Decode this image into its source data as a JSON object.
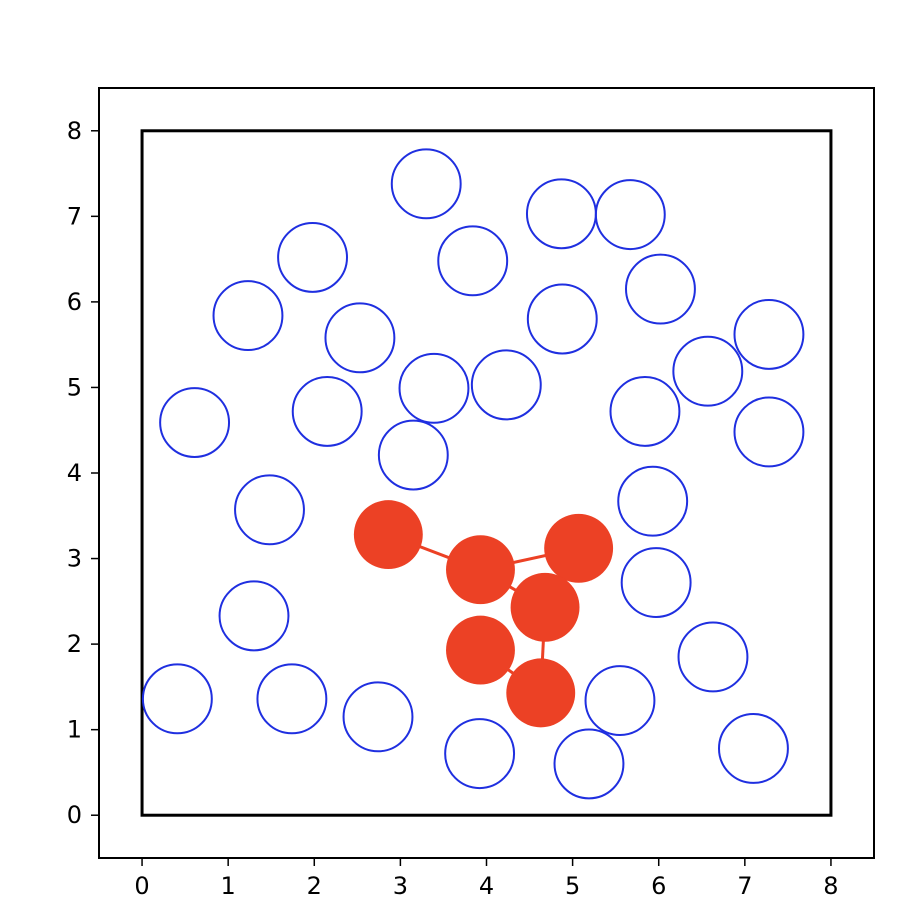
{
  "chart_data": {
    "type": "scatter",
    "title": "",
    "xlabel": "",
    "ylabel": "",
    "xlim": [
      -0.5,
      8.5
    ],
    "ylim": [
      -0.5,
      8.5
    ],
    "x_ticks": [
      "0",
      "1",
      "2",
      "3",
      "4",
      "5",
      "6",
      "7",
      "8"
    ],
    "y_ticks": [
      "0",
      "1",
      "2",
      "3",
      "4",
      "5",
      "6",
      "7",
      "8"
    ],
    "grid": false,
    "legend": "none",
    "boundary_box": {
      "x": [
        0,
        8
      ],
      "y": [
        0,
        8
      ],
      "color": "#000000"
    },
    "particle_radius": 0.4,
    "series": [
      {
        "style": "hollow",
        "color": "#1f2fe0",
        "points": [
          [
            3.3,
            7.38
          ],
          [
            4.87,
            7.03
          ],
          [
            5.67,
            7.02
          ],
          [
            1.98,
            6.52
          ],
          [
            3.84,
            6.48
          ],
          [
            6.02,
            6.15
          ],
          [
            1.23,
            5.84
          ],
          [
            4.88,
            5.8
          ],
          [
            2.53,
            5.58
          ],
          [
            7.28,
            5.62
          ],
          [
            6.57,
            5.19
          ],
          [
            3.39,
            4.99
          ],
          [
            4.23,
            5.03
          ],
          [
            0.61,
            4.59
          ],
          [
            2.15,
            4.72
          ],
          [
            5.84,
            4.72
          ],
          [
            7.28,
            4.48
          ],
          [
            3.15,
            4.21
          ],
          [
            5.93,
            3.67
          ],
          [
            1.48,
            3.57
          ],
          [
            5.97,
            2.72
          ],
          [
            1.3,
            2.33
          ],
          [
            6.63,
            1.85
          ],
          [
            0.41,
            1.36
          ],
          [
            1.74,
            1.36
          ],
          [
            2.74,
            1.15
          ],
          [
            5.55,
            1.34
          ],
          [
            3.92,
            0.72
          ],
          [
            5.19,
            0.6
          ],
          [
            7.1,
            0.78
          ]
        ]
      },
      {
        "style": "filled",
        "color": "#ec4125",
        "points": [
          [
            2.86,
            3.28
          ],
          [
            3.93,
            2.87
          ],
          [
            5.07,
            3.12
          ],
          [
            4.68,
            2.43
          ],
          [
            3.93,
            1.93
          ],
          [
            4.63,
            1.43
          ]
        ],
        "links": [
          [
            0,
            1
          ],
          [
            1,
            2
          ],
          [
            1,
            3
          ],
          [
            3,
            5
          ],
          [
            4,
            5
          ]
        ]
      }
    ]
  }
}
